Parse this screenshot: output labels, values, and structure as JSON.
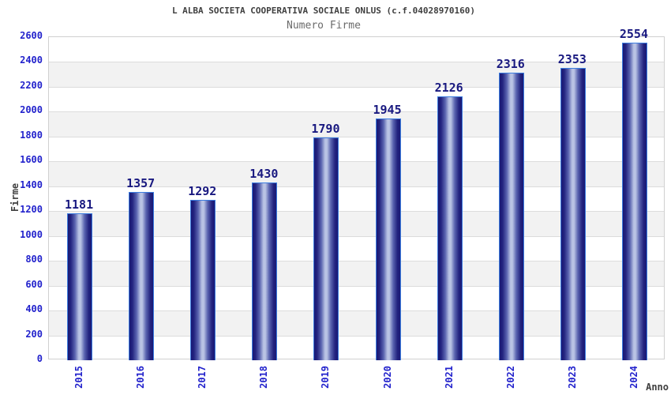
{
  "chart_data": {
    "type": "bar",
    "title": "L ALBA SOCIETA COOPERATIVA SOCIALE ONLUS (c.f.04028970160)",
    "subtitle": "Numero Firme",
    "xlabel": "Anno",
    "ylabel": "Firme",
    "categories": [
      "2015",
      "2016",
      "2017",
      "2018",
      "2019",
      "2020",
      "2021",
      "2022",
      "2023",
      "2024"
    ],
    "values": [
      1181,
      1357,
      1292,
      1430,
      1790,
      1945,
      2126,
      2316,
      2353,
      2554
    ],
    "ylim": [
      0,
      2600
    ],
    "ytick_step": 200,
    "grid": true,
    "legend": false,
    "colors": {
      "title": "#3f3f3f",
      "subtitle": "#6b6b6b",
      "axis_title": "#3f3f3f",
      "tick_label": "#2222cc",
      "value_label": "#191980",
      "bar_dark": "#191975",
      "bar_mid": "#5a64b0",
      "bar_light": "#b9c3e4",
      "bar_border": "#3c7de0",
      "band": "#f2f2f2",
      "gridline": "#dcdcdc",
      "plot_border": "#d0d0d0",
      "background": "#ffffff"
    }
  }
}
